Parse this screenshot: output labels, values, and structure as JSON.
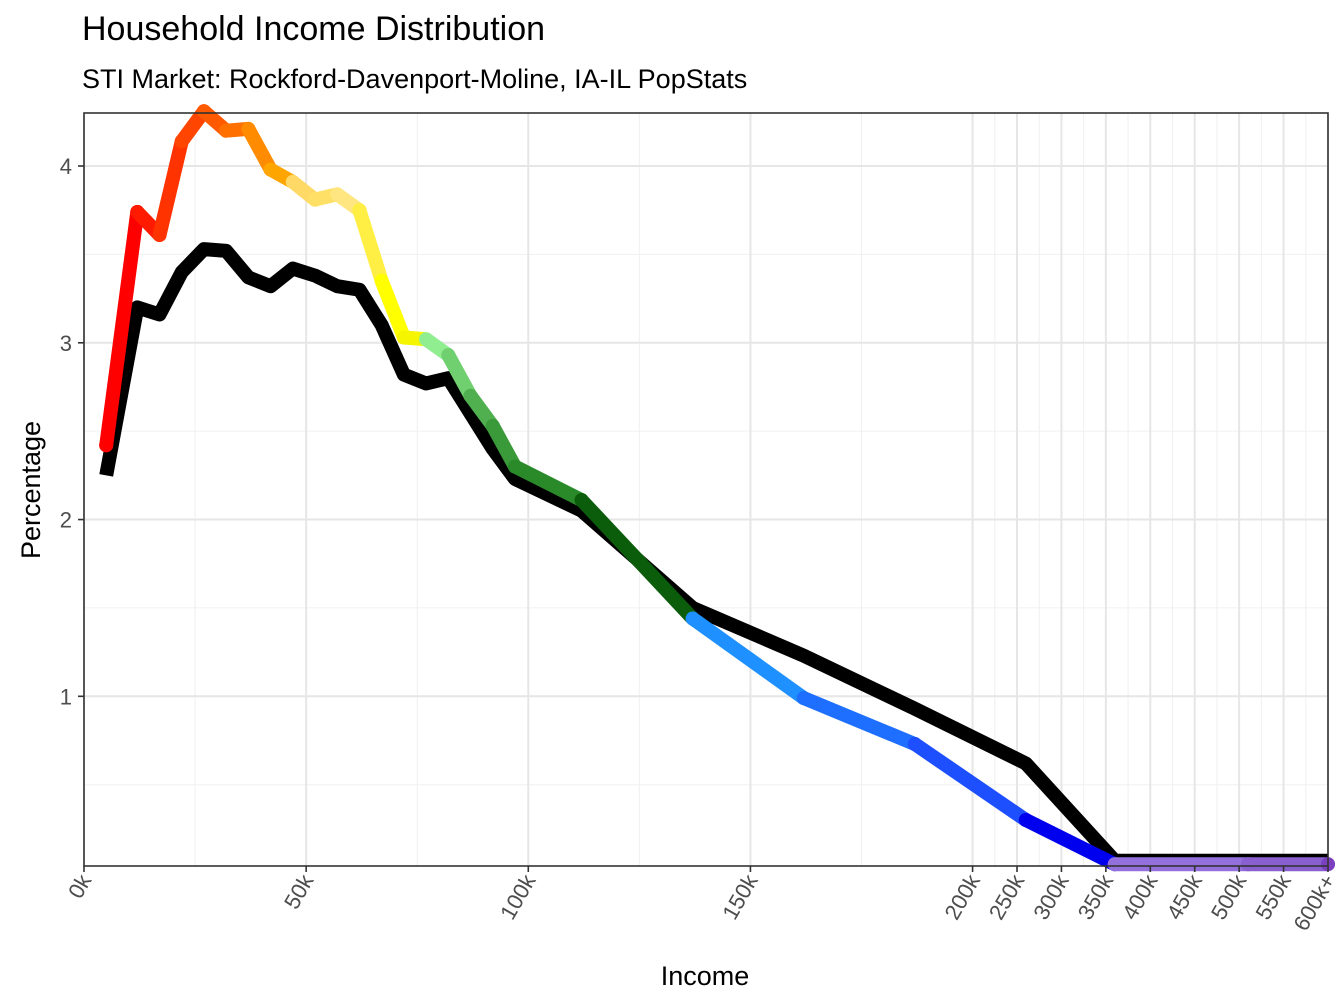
{
  "chart_data": {
    "type": "line",
    "title": "Household Income Distribution",
    "subtitle": "STI Market: Rockford-Davenport-Moline, IA-IL PopStats",
    "xlabel": "Income",
    "ylabel": "Percentage",
    "grid": true,
    "legend": "none",
    "ylim": [
      0.04,
      4.3
    ],
    "y_ticks": [
      1,
      2,
      3,
      4
    ],
    "x_ticks": [
      {
        "label": "0k",
        "x": 0
      },
      {
        "label": "50k",
        "x": 50
      },
      {
        "label": "100k",
        "x": 100
      },
      {
        "label": "150k",
        "x": 150
      },
      {
        "label": "200k",
        "x": 200
      },
      {
        "label": "250k",
        "x": 210
      },
      {
        "label": "300k",
        "x": 220
      },
      {
        "label": "350k",
        "x": 230
      },
      {
        "label": "400k",
        "x": 240
      },
      {
        "label": "450k",
        "x": 250
      },
      {
        "label": "500k",
        "x": 260
      },
      {
        "label": "550k",
        "x": 270
      },
      {
        "label": "600k+",
        "x": 280
      }
    ],
    "series": [
      {
        "name": "",
        "style": "black",
        "x": [
          5,
          12,
          17,
          22,
          27,
          32,
          37,
          42,
          47,
          52,
          57,
          62,
          67,
          72,
          77,
          82,
          87,
          92,
          97,
          112,
          137,
          162,
          187,
          212,
          232,
          262,
          280
        ],
        "y": [
          2.25,
          3.2,
          3.16,
          3.4,
          3.53,
          3.52,
          3.37,
          3.32,
          3.42,
          3.38,
          3.32,
          3.3,
          3.1,
          2.82,
          2.77,
          2.8,
          2.6,
          2.4,
          2.23,
          2.05,
          1.5,
          1.23,
          0.93,
          0.62,
          0.07,
          0.07,
          0.07
        ]
      },
      {
        "name": "",
        "style": "colored",
        "x": [
          5,
          12,
          17,
          22,
          27,
          32,
          37,
          42,
          47,
          52,
          57,
          62,
          67,
          72,
          77,
          82,
          87,
          92,
          97,
          112,
          137,
          162,
          187,
          212,
          232,
          262,
          280
        ],
        "y": [
          2.42,
          3.74,
          3.61,
          4.14,
          4.31,
          4.2,
          4.21,
          3.98,
          3.91,
          3.81,
          3.84,
          3.75,
          3.35,
          3.03,
          3.02,
          2.93,
          2.7,
          2.53,
          2.3,
          2.11,
          1.44,
          0.99,
          0.73,
          0.3,
          0.05,
          0.05,
          0.05
        ],
        "colors": [
          "#ff0000",
          "#ff1a00",
          "#ff3300",
          "#ff4500",
          "#ff5a00",
          "#ff7000",
          "#ff8c00",
          "#ffa500",
          "#ffd966",
          "#ffe066",
          "#ffe680",
          "#ffee44",
          "#ffff00",
          "#f5f500",
          "#90ee90",
          "#70d070",
          "#50b050",
          "#3a9a3a",
          "#2a8a2a",
          "#0b5d0b",
          "#1e90ff",
          "#1e6fff",
          "#1e4fff",
          "#0000ee",
          "#9370db",
          "#8a60d0",
          "#7a40c0"
        ]
      }
    ]
  }
}
